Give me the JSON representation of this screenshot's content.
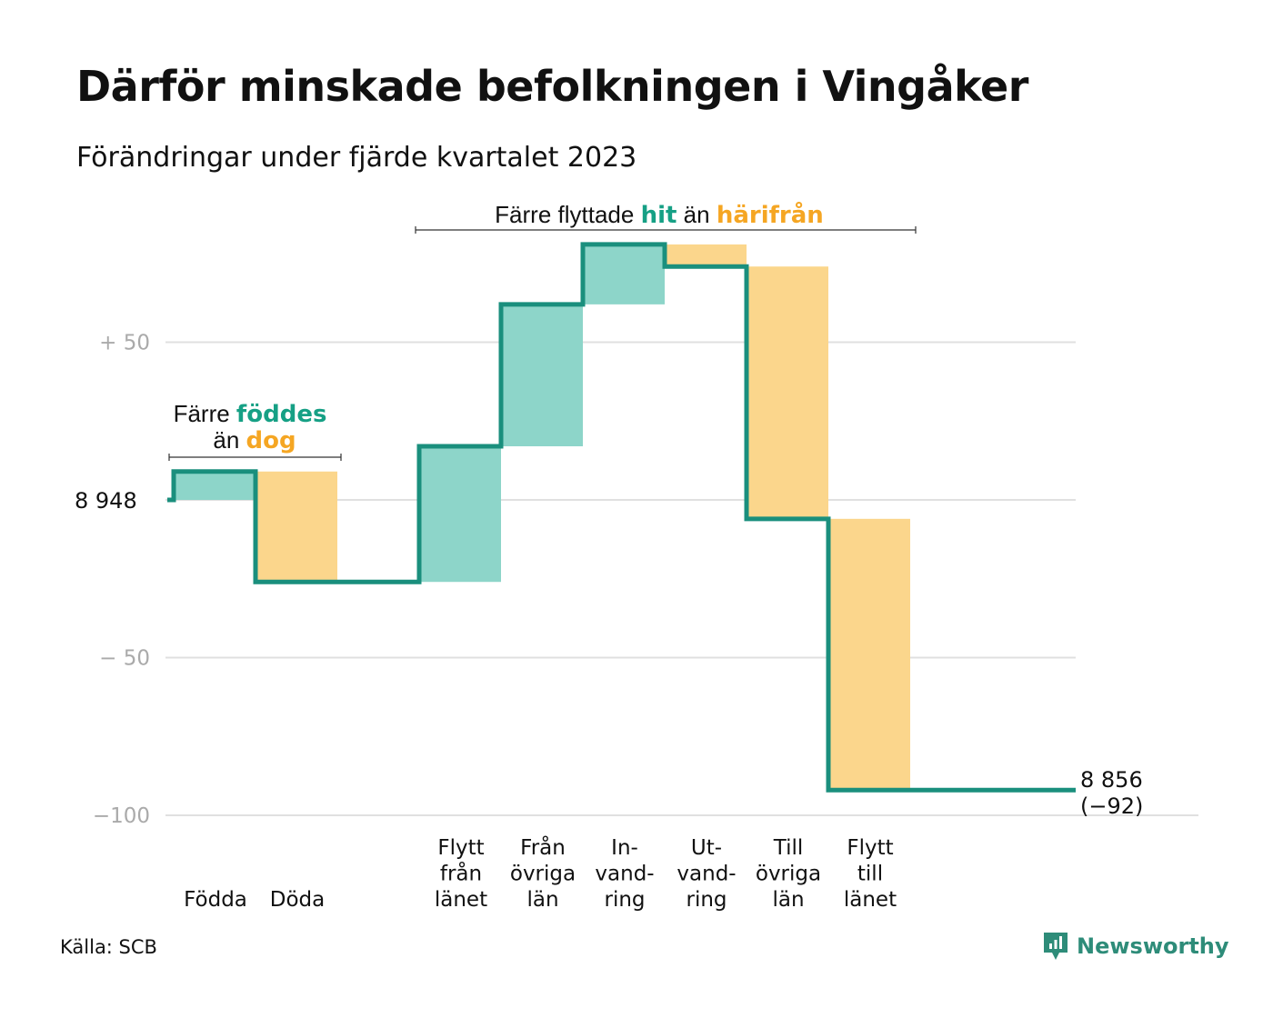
{
  "title": "Därför minskade befolkningen i Vingåker",
  "subtitle": "Förändringar under fjärde kvartalet 2023",
  "source": "Källa: SCB",
  "brand": "Newsworthy",
  "annotations": {
    "births_deaths": {
      "prefix": "Färre",
      "pos": "föddes",
      "mid": "än",
      "neg": "dog"
    },
    "migration": {
      "prefix": "Färre flyttade",
      "pos": "hit",
      "mid": "än",
      "neg": "härifrån"
    }
  },
  "start_label": "8  948",
  "end_label": {
    "line1": "8 856",
    "line2": "(−92)"
  },
  "colors": {
    "positive": "#8dd5c9",
    "negative": "#fbd68c",
    "line": "#1a8f7d",
    "grid": "#e0e0e0",
    "accent_teal": "#16a085",
    "accent_orange": "#f5a623"
  },
  "chart_data": {
    "type": "waterfall",
    "start_value": 8948,
    "end_value": 8856,
    "total_change": -92,
    "ylim": [
      -100,
      80
    ],
    "y_ticks": [
      {
        "value": 50,
        "label": "+  50"
      },
      {
        "value": 0,
        "label": ""
      },
      {
        "value": -50,
        "label": "−  50"
      },
      {
        "value": -100,
        "label": "−100"
      }
    ],
    "categories": [
      {
        "lines": [
          "Födda"
        ],
        "change": 9,
        "slot": 0
      },
      {
        "lines": [
          "Döda"
        ],
        "change": -35,
        "slot": 1
      },
      {
        "lines": [
          "Flytt",
          "från",
          "länet"
        ],
        "change": 43,
        "slot": 3
      },
      {
        "lines": [
          "Från",
          "övriga",
          "län"
        ],
        "change": 45,
        "slot": 4
      },
      {
        "lines": [
          "In-",
          "vand-",
          "ring"
        ],
        "change": 19,
        "slot": 5
      },
      {
        "lines": [
          "Ut-",
          "vand-",
          "ring"
        ],
        "change": -7,
        "slot": 6
      },
      {
        "lines": [
          "Till",
          "övriga",
          "län"
        ],
        "change": -80,
        "slot": 7
      },
      {
        "lines": [
          "Flytt",
          "till",
          "länet"
        ],
        "change": -86,
        "slot": 8
      }
    ]
  }
}
